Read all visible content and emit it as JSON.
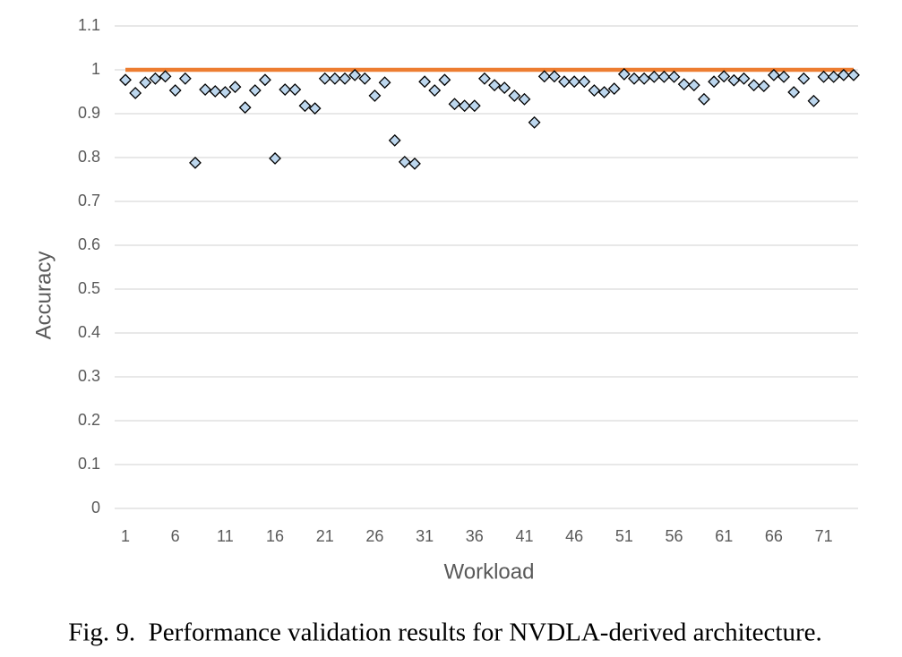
{
  "chart_data": {
    "type": "scatter",
    "caption": "Fig. 9.  Performance validation results for NVDLA-derived architecture.",
    "x_label": "Workload",
    "y_label": "Accuracy",
    "categories": [
      "1",
      null,
      null,
      null,
      null,
      "6",
      null,
      null,
      null,
      null,
      "11",
      null,
      null,
      null,
      null,
      "16",
      null,
      null,
      null,
      null,
      "21",
      null,
      null,
      null,
      null,
      "26",
      null,
      null,
      null,
      null,
      "31",
      null,
      null,
      null,
      null,
      "36",
      null,
      null,
      null,
      null,
      "41",
      null,
      null,
      null,
      null,
      "46",
      null,
      null,
      null,
      null,
      "51",
      null,
      null,
      null,
      null,
      "56",
      null,
      null,
      null,
      null,
      "61",
      null,
      null,
      null,
      null,
      "66",
      null,
      null,
      null,
      null,
      "71",
      null,
      null,
      null
    ],
    "ylim": [
      0,
      1.1
    ],
    "yticks": [
      0,
      0.1,
      0.2,
      0.3,
      0.4,
      0.5,
      0.6,
      0.7,
      0.8,
      0.9,
      1,
      1.1
    ],
    "grid": true,
    "series": [
      {
        "type": "line",
        "color": "#ed7d31",
        "values": [
          1,
          1,
          1,
          1,
          1,
          1,
          1,
          1,
          1,
          1,
          1,
          1,
          1,
          1,
          1,
          1,
          1,
          1,
          1,
          1,
          1,
          1,
          1,
          1,
          1,
          1,
          1,
          1,
          1,
          1,
          1,
          1,
          1,
          1,
          1,
          1,
          1,
          1,
          1,
          1,
          1,
          1,
          1,
          1,
          1,
          1,
          1,
          1,
          1,
          1,
          1,
          1,
          1,
          1,
          1,
          1,
          1,
          1,
          1,
          1,
          1,
          1,
          1,
          1,
          1,
          1,
          1,
          1,
          1,
          1,
          1,
          1,
          1,
          1
        ]
      },
      {
        "type": "scatter",
        "color": "#bdd7ee",
        "values": [
          0.977,
          0.947,
          0.971,
          0.98,
          0.985,
          0.953,
          0.98,
          0.788,
          0.955,
          0.951,
          0.949,
          0.961,
          0.914,
          0.953,
          0.977,
          0.798,
          0.955,
          0.955,
          0.918,
          0.912,
          0.98,
          0.98,
          0.98,
          0.988,
          0.98,
          0.941,
          0.971,
          0.839,
          0.79,
          0.786,
          0.973,
          0.953,
          0.977,
          0.922,
          0.918,
          0.918,
          0.98,
          0.965,
          0.959,
          0.941,
          0.933,
          0.88,
          0.985,
          0.985,
          0.973,
          0.973,
          0.973,
          0.953,
          0.949,
          0.957,
          0.99,
          0.98,
          0.98,
          0.984,
          0.984,
          0.984,
          0.967,
          0.965,
          0.933,
          0.973,
          0.985,
          0.976,
          0.98,
          0.965,
          0.963,
          0.988,
          0.984,
          0.949,
          0.98,
          0.929,
          0.984,
          0.984,
          0.988,
          0.988
        ]
      }
    ]
  }
}
